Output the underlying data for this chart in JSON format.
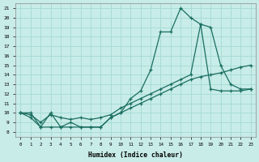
{
  "xlabel": "Humidex (Indice chaleur)",
  "bg_color": "#c8ece8",
  "grid_color": "#a8dcd6",
  "line_color": "#1a6e60",
  "xlim": [
    -0.5,
    23.5
  ],
  "ylim": [
    7.5,
    21.5
  ],
  "xticks": [
    0,
    1,
    2,
    3,
    4,
    5,
    6,
    7,
    8,
    9,
    10,
    11,
    12,
    13,
    14,
    15,
    16,
    17,
    18,
    19,
    20,
    21,
    22,
    23
  ],
  "yticks": [
    8,
    9,
    10,
    11,
    12,
    13,
    14,
    15,
    16,
    17,
    18,
    19,
    20,
    21
  ],
  "s1_x": [
    0,
    1,
    2,
    3,
    4,
    5,
    6,
    7,
    8,
    9,
    10,
    11,
    12,
    13,
    14,
    15,
    16,
    17,
    18,
    19,
    20,
    21,
    22,
    23
  ],
  "s1_y": [
    10.0,
    10.0,
    8.5,
    10.0,
    8.5,
    8.5,
    8.5,
    8.5,
    8.5,
    9.5,
    10.0,
    11.5,
    12.3,
    14.5,
    18.5,
    18.5,
    21.0,
    20.0,
    19.3,
    19.0,
    15.0,
    13.0,
    12.5,
    12.5
  ],
  "s2_x": [
    0,
    1,
    2,
    3,
    4,
    5,
    6,
    7,
    8,
    9,
    10,
    11,
    12,
    13,
    14,
    15,
    16,
    17,
    18,
    19,
    20,
    21,
    22,
    23
  ],
  "s2_y": [
    10.0,
    9.8,
    9.0,
    9.8,
    9.5,
    9.3,
    9.5,
    9.3,
    9.5,
    9.8,
    10.5,
    11.0,
    11.5,
    12.0,
    12.5,
    13.0,
    13.5,
    14.0,
    19.3,
    12.5,
    12.3,
    12.3,
    12.3,
    12.5
  ],
  "s3_x": [
    0,
    1,
    2,
    3,
    4,
    5,
    6,
    7,
    8,
    9,
    10,
    11,
    12,
    13,
    14,
    15,
    16,
    17,
    18,
    19,
    20,
    21,
    22,
    23
  ],
  "s3_y": [
    10.0,
    9.5,
    8.5,
    8.5,
    8.5,
    9.0,
    8.5,
    8.5,
    8.5,
    9.5,
    10.0,
    10.5,
    11.0,
    11.5,
    12.0,
    12.5,
    13.0,
    13.5,
    13.8,
    14.0,
    14.2,
    14.5,
    14.8,
    15.0
  ],
  "figsize": [
    3.2,
    2.0
  ],
  "dpi": 100
}
